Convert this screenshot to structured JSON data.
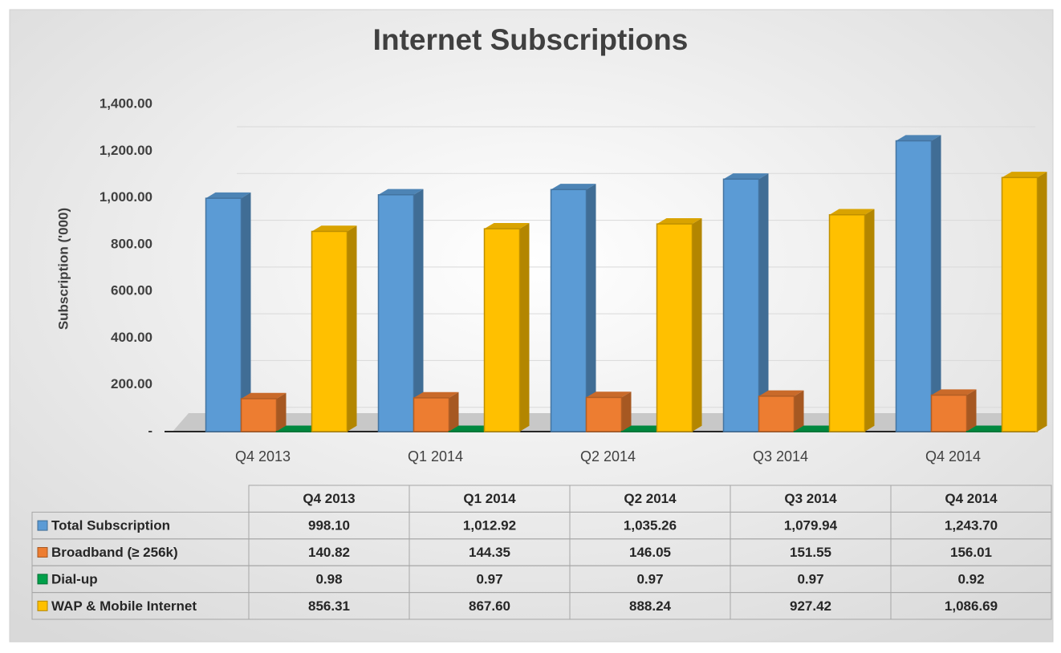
{
  "chart_data": {
    "type": "bar",
    "title": "Internet Subscriptions",
    "y_label": "Subscription ('000)",
    "categories": [
      "Q4 2013",
      "Q1 2014",
      "Q2 2014",
      "Q3 2014",
      "Q4 2014"
    ],
    "series": [
      {
        "name": "Total Subscription",
        "color": "#5b9bd5",
        "values": [
          998.1,
          1012.92,
          1035.26,
          1079.94,
          1243.7
        ],
        "value_labels": [
          "998.10",
          "1,012.92",
          "1,035.26",
          "1,079.94",
          "1,243.70"
        ]
      },
      {
        "name": "Broadband (≥ 256k)",
        "color": "#ed7d31",
        "values": [
          140.82,
          144.35,
          146.05,
          151.55,
          156.01
        ],
        "value_labels": [
          "140.82",
          "144.35",
          "146.05",
          "151.55",
          "156.01"
        ]
      },
      {
        "name": "Dial-up",
        "color": "#00a04a",
        "values": [
          0.98,
          0.97,
          0.97,
          0.97,
          0.92
        ],
        "value_labels": [
          "0.98",
          "0.97",
          "0.97",
          "0.97",
          "0.92"
        ]
      },
      {
        "name": "WAP & Mobile Internet",
        "color": "#ffc000",
        "values": [
          856.31,
          867.6,
          888.24,
          927.42,
          1086.69
        ],
        "value_labels": [
          "856.31",
          "867.60",
          "888.24",
          "927.42",
          "1,086.69"
        ]
      }
    ],
    "ylim": [
      0,
      1400
    ],
    "yticks": [
      {
        "value": 0,
        "label": "-"
      },
      {
        "value": 200,
        "label": "200.00"
      },
      {
        "value": 400,
        "label": "400.00"
      },
      {
        "value": 600,
        "label": "600.00"
      },
      {
        "value": 800,
        "label": "800.00"
      },
      {
        "value": 1000,
        "label": "1,000.00"
      },
      {
        "value": 1200,
        "label": "1,200.00"
      },
      {
        "value": 1400,
        "label": "1,400.00"
      }
    ],
    "grid": true
  }
}
